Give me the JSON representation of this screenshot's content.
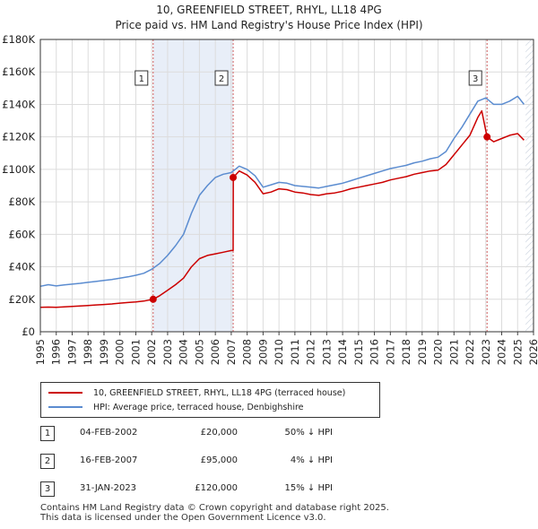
{
  "title": {
    "line1": "10, GREENFIELD STREET, RHYL, LL18 4PG",
    "line2": "Price paid vs. HM Land Registry's House Price Index (HPI)"
  },
  "chart_data": {
    "type": "line",
    "xlim": [
      1995,
      2026
    ],
    "ylim": [
      0,
      180000
    ],
    "yticks": [
      0,
      20000,
      40000,
      60000,
      80000,
      100000,
      120000,
      140000,
      160000,
      180000
    ],
    "ytick_labels": [
      "£0",
      "£20K",
      "£40K",
      "£60K",
      "£80K",
      "£100K",
      "£120K",
      "£140K",
      "£160K",
      "£180K"
    ],
    "xticks": [
      1995,
      1996,
      1997,
      1998,
      1999,
      2000,
      2001,
      2002,
      2003,
      2004,
      2005,
      2006,
      2007,
      2008,
      2009,
      2010,
      2011,
      2012,
      2013,
      2014,
      2015,
      2016,
      2017,
      2018,
      2019,
      2020,
      2021,
      2022,
      2023,
      2024,
      2025,
      2026
    ],
    "xtick_labels": [
      "1995",
      "1996",
      "1997",
      "1998",
      "1999",
      "2000",
      "2001",
      "2002",
      "2003",
      "2004",
      "2005",
      "2006",
      "2007",
      "2008",
      "2009",
      "2010",
      "2011",
      "2012",
      "2013",
      "2014",
      "2015",
      "2016",
      "2017",
      "2018",
      "2019",
      "2020",
      "2021",
      "2022",
      "2023",
      "2024",
      "2025",
      "2026"
    ],
    "grid": true,
    "series": [
      {
        "name": "10, GREENFIELD STREET, RHYL, LL18 4PG (terraced house)",
        "color": "#cc0000",
        "points": [
          [
            1995.0,
            15000
          ],
          [
            1995.5,
            15200
          ],
          [
            1996.0,
            15000
          ],
          [
            1996.5,
            15300
          ],
          [
            1997.0,
            15600
          ],
          [
            1997.5,
            15900
          ],
          [
            1998.0,
            16200
          ],
          [
            1998.5,
            16500
          ],
          [
            1999.0,
            16800
          ],
          [
            1999.5,
            17100
          ],
          [
            2000.0,
            17600
          ],
          [
            2000.5,
            18000
          ],
          [
            2001.0,
            18400
          ],
          [
            2001.5,
            18900
          ],
          [
            2002.09,
            20000
          ],
          [
            2002.5,
            22200
          ],
          [
            2003.0,
            25500
          ],
          [
            2003.5,
            29000
          ],
          [
            2004.0,
            33000
          ],
          [
            2004.5,
            40000
          ],
          [
            2005.0,
            45000
          ],
          [
            2005.5,
            47000
          ],
          [
            2006.0,
            48000
          ],
          [
            2006.5,
            49000
          ],
          [
            2007.0,
            50000
          ],
          [
            2007.12,
            50000
          ],
          [
            2007.13,
            95000
          ],
          [
            2007.5,
            99000
          ],
          [
            2008.0,
            96500
          ],
          [
            2008.5,
            92000
          ],
          [
            2009.0,
            85000
          ],
          [
            2009.5,
            86000
          ],
          [
            2010.0,
            88000
          ],
          [
            2010.5,
            87500
          ],
          [
            2011.0,
            86000
          ],
          [
            2011.5,
            85500
          ],
          [
            2012.0,
            84500
          ],
          [
            2012.5,
            84000
          ],
          [
            2013.0,
            85000
          ],
          [
            2013.5,
            85500
          ],
          [
            2014.0,
            86500
          ],
          [
            2014.5,
            88000
          ],
          [
            2015.0,
            89000
          ],
          [
            2015.5,
            90000
          ],
          [
            2016.0,
            91000
          ],
          [
            2016.5,
            92000
          ],
          [
            2017.0,
            93500
          ],
          [
            2017.5,
            94500
          ],
          [
            2018.0,
            95500
          ],
          [
            2018.5,
            97000
          ],
          [
            2019.0,
            98000
          ],
          [
            2019.5,
            99000
          ],
          [
            2020.0,
            99500
          ],
          [
            2020.5,
            103000
          ],
          [
            2021.0,
            109000
          ],
          [
            2021.5,
            115000
          ],
          [
            2022.0,
            121000
          ],
          [
            2022.5,
            132000
          ],
          [
            2022.75,
            136000
          ],
          [
            2023.08,
            120000
          ],
          [
            2023.5,
            117000
          ],
          [
            2024.0,
            119000
          ],
          [
            2024.5,
            121000
          ],
          [
            2025.0,
            122000
          ],
          [
            2025.4,
            118000
          ]
        ]
      },
      {
        "name": "HPI: Average price, terraced house, Denbighshire",
        "color": "#5b8cd0",
        "points": [
          [
            1995.0,
            28000
          ],
          [
            1995.5,
            29000
          ],
          [
            1996.0,
            28200
          ],
          [
            1996.5,
            28800
          ],
          [
            1997.0,
            29300
          ],
          [
            1997.5,
            29800
          ],
          [
            1998.0,
            30400
          ],
          [
            1998.5,
            31000
          ],
          [
            1999.0,
            31600
          ],
          [
            1999.5,
            32200
          ],
          [
            2000.0,
            33000
          ],
          [
            2000.5,
            33800
          ],
          [
            2001.0,
            34800
          ],
          [
            2001.5,
            36000
          ],
          [
            2002.0,
            38500
          ],
          [
            2002.5,
            42000
          ],
          [
            2003.0,
            47000
          ],
          [
            2003.5,
            53000
          ],
          [
            2004.0,
            60000
          ],
          [
            2004.5,
            73000
          ],
          [
            2005.0,
            84000
          ],
          [
            2005.5,
            90000
          ],
          [
            2006.0,
            95000
          ],
          [
            2006.5,
            97000
          ],
          [
            2007.0,
            98000
          ],
          [
            2007.5,
            102000
          ],
          [
            2008.0,
            100000
          ],
          [
            2008.5,
            96000
          ],
          [
            2009.0,
            89000
          ],
          [
            2009.5,
            90500
          ],
          [
            2010.0,
            92000
          ],
          [
            2010.5,
            91500
          ],
          [
            2011.0,
            90000
          ],
          [
            2011.5,
            89500
          ],
          [
            2012.0,
            89000
          ],
          [
            2012.5,
            88500
          ],
          [
            2013.0,
            89500
          ],
          [
            2013.5,
            90500
          ],
          [
            2014.0,
            91500
          ],
          [
            2014.5,
            93000
          ],
          [
            2015.0,
            94500
          ],
          [
            2015.5,
            96000
          ],
          [
            2016.0,
            97500
          ],
          [
            2016.5,
            99000
          ],
          [
            2017.0,
            100500
          ],
          [
            2017.5,
            101500
          ],
          [
            2018.0,
            102500
          ],
          [
            2018.5,
            104000
          ],
          [
            2019.0,
            105000
          ],
          [
            2019.5,
            106500
          ],
          [
            2020.0,
            107500
          ],
          [
            2020.5,
            111000
          ],
          [
            2021.0,
            119000
          ],
          [
            2021.5,
            126000
          ],
          [
            2022.0,
            134000
          ],
          [
            2022.5,
            142000
          ],
          [
            2023.0,
            144000
          ],
          [
            2023.5,
            140000
          ],
          [
            2024.0,
            140000
          ],
          [
            2024.5,
            142000
          ],
          [
            2025.0,
            145000
          ],
          [
            2025.4,
            140000
          ]
        ]
      }
    ],
    "sales": [
      {
        "label": "1",
        "x": 2002.09,
        "y": 20000
      },
      {
        "label": "2",
        "x": 2007.12,
        "y": 95000
      },
      {
        "label": "3",
        "x": 2023.08,
        "y": 120000
      }
    ],
    "future_shade_from": 2025.5,
    "legend_position": "below"
  },
  "legend": {
    "entries": [
      {
        "label": "10, GREENFIELD STREET, RHYL, LL18 4PG (terraced house)",
        "color": "#cc0000"
      },
      {
        "label": "HPI: Average price, terraced house, Denbighshire",
        "color": "#5b8cd0"
      }
    ]
  },
  "transactions": [
    {
      "num": "1",
      "date": "04-FEB-2002",
      "price": "£20,000",
      "hpi": "50% ↓ HPI"
    },
    {
      "num": "2",
      "date": "16-FEB-2007",
      "price": "£95,000",
      "hpi": "4% ↓ HPI"
    },
    {
      "num": "3",
      "date": "31-JAN-2023",
      "price": "£120,000",
      "hpi": "15% ↓ HPI"
    }
  ],
  "footer": {
    "line1": "Contains HM Land Registry data © Crown copyright and database right 2025.",
    "line2": "This data is licensed under the Open Government Licence v3.0."
  }
}
